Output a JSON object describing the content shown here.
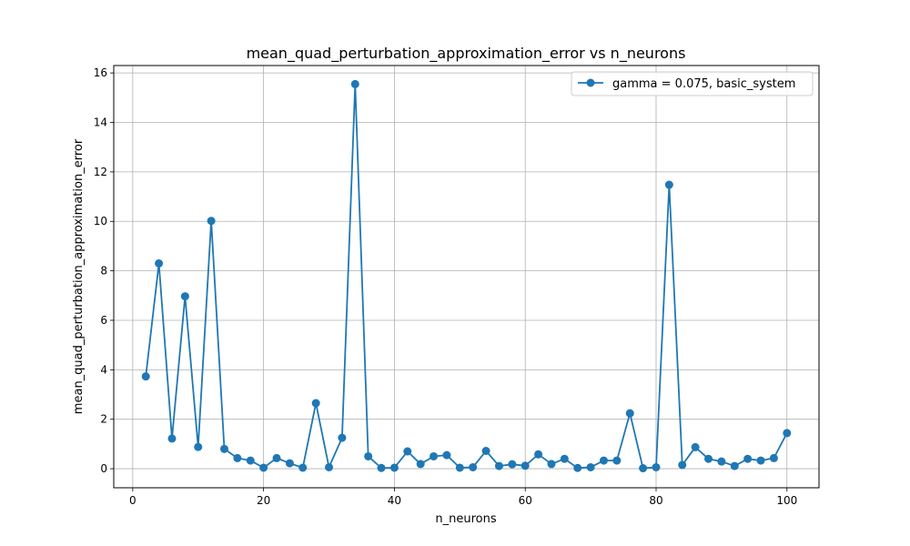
{
  "chart_data": {
    "type": "line",
    "title": "mean_quad_perturbation_approximation_error vs n_neurons",
    "xlabel": "n_neurons",
    "ylabel": "mean_quad_perturbation_approximation_error",
    "xlim": [
      -2.9,
      104.9
    ],
    "ylim": [
      -0.77,
      16.3
    ],
    "xticks": [
      0,
      20,
      40,
      60,
      80,
      100
    ],
    "yticks": [
      0,
      2,
      4,
      6,
      8,
      10,
      12,
      14,
      16
    ],
    "grid": true,
    "legend_position": "top-right",
    "series": [
      {
        "name": "gamma = 0.075, basic_system",
        "color": "#1f77b4",
        "marker": "circle",
        "x": [
          2,
          4,
          6,
          8,
          10,
          12,
          14,
          16,
          18,
          20,
          22,
          24,
          26,
          28,
          30,
          32,
          34,
          36,
          38,
          40,
          42,
          44,
          46,
          48,
          50,
          52,
          54,
          56,
          58,
          60,
          62,
          64,
          66,
          68,
          70,
          72,
          74,
          76,
          78,
          80,
          82,
          84,
          86,
          88,
          90,
          92,
          94,
          96,
          98,
          100
        ],
        "y": [
          3.73,
          8.3,
          1.22,
          6.97,
          0.88,
          10.02,
          0.8,
          0.43,
          0.33,
          0.04,
          0.43,
          0.22,
          0.04,
          2.65,
          0.06,
          1.25,
          15.55,
          0.5,
          0.03,
          0.04,
          0.7,
          0.19,
          0.5,
          0.55,
          0.04,
          0.06,
          0.72,
          0.11,
          0.18,
          0.12,
          0.58,
          0.19,
          0.4,
          0.03,
          0.06,
          0.33,
          0.33,
          2.24,
          0.02,
          0.06,
          11.48,
          0.15,
          0.87,
          0.4,
          0.29,
          0.11,
          0.4,
          0.33,
          0.43,
          1.44
        ]
      }
    ]
  }
}
